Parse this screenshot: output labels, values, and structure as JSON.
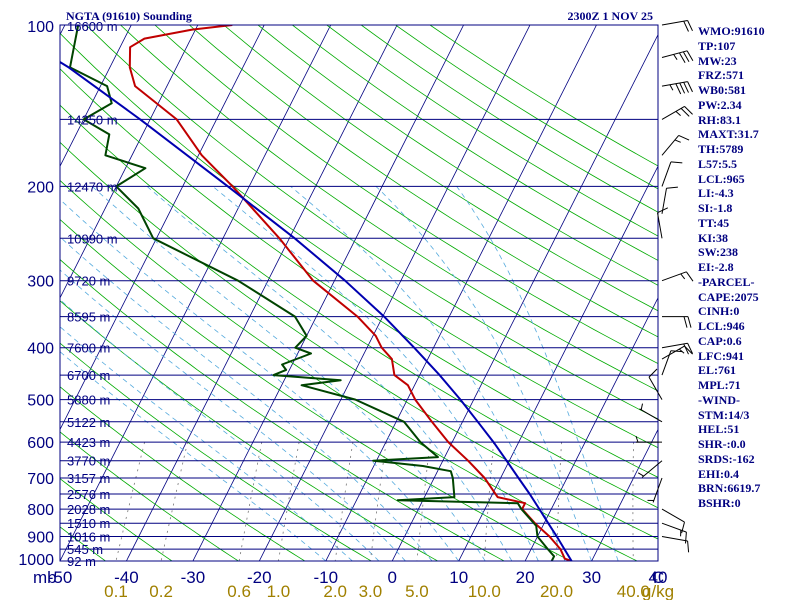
{
  "header": {
    "title": "NGTA (91610) Sounding",
    "datetime": "2300Z  1 NOV 25"
  },
  "colors": {
    "frame": "#000080",
    "temperature": "#c00000",
    "dewpoint": "#004400",
    "parcel": "#0000b0",
    "dry_adiabat": "#00aa00",
    "moist_adiabat": "#55aadd",
    "mixing_ratio": "#777777",
    "isotherm": "#000080",
    "wind": "#000000",
    "mixing_label": "#a08000"
  },
  "chart_data": {
    "type": "line",
    "title": "NGTA (91610) Sounding",
    "diagram": "Skew-T log-P",
    "pressure_unit_label": "mb",
    "mixing_ratio_unit_label": "g/kg",
    "pressure_levels": [
      100,
      200,
      300,
      400,
      500,
      600,
      700,
      800,
      900,
      1000
    ],
    "pressure_labels": [
      "100",
      "200",
      "300",
      "400",
      "500",
      "600",
      "700",
      "800",
      "900",
      "1000"
    ],
    "temp_range": [
      -50,
      40
    ],
    "temperature_ticks": [
      -50,
      -40,
      -30,
      -20,
      -10,
      0,
      10,
      20,
      30,
      40
    ],
    "temperature_tick_labels": [
      "-50",
      "-40",
      "-30",
      "-20",
      "-10",
      "0",
      "10",
      "20",
      "30",
      "40"
    ],
    "temperature_end_label": "C",
    "height_labels": [
      {
        "p": 100,
        "label": "16600 m"
      },
      {
        "p": 150,
        "label": "14250 m"
      },
      {
        "p": 200,
        "label": "12470 m"
      },
      {
        "p": 250,
        "label": "10990 m"
      },
      {
        "p": 300,
        "label": "9720 m"
      },
      {
        "p": 350,
        "label": "8595 m"
      },
      {
        "p": 400,
        "label": "7600 m"
      },
      {
        "p": 450,
        "label": "6700 m"
      },
      {
        "p": 500,
        "label": "5880 m"
      },
      {
        "p": 550,
        "label": "5122 m"
      },
      {
        "p": 600,
        "label": "4423 m"
      },
      {
        "p": 650,
        "label": "3770 m"
      },
      {
        "p": 700,
        "label": "3157 m"
      },
      {
        "p": 750,
        "label": "2576 m"
      },
      {
        "p": 800,
        "label": "2028 m"
      },
      {
        "p": 850,
        "label": "1510 m"
      },
      {
        "p": 900,
        "label": "1016 m"
      },
      {
        "p": 950,
        "label": "545 m"
      },
      {
        "p": 1000,
        "label": "92 m"
      }
    ],
    "mixing_ratio_labels": [
      "0.1",
      "0.2",
      "0.6",
      "1.0",
      "2.0",
      "3.0",
      "5.0",
      "10.0",
      "20.0",
      "40.0"
    ],
    "series": [
      {
        "name": "Temperature",
        "points": [
          {
            "p": 1000,
            "t": 27.0
          },
          {
            "p": 990,
            "t": 25.8
          },
          {
            "p": 950,
            "t": 24.4
          },
          {
            "p": 900,
            "t": 21.8
          },
          {
            "p": 850,
            "t": 18.6
          },
          {
            "p": 800,
            "t": 15.6
          },
          {
            "p": 780,
            "t": 15.6
          },
          {
            "p": 760,
            "t": 11.0
          },
          {
            "p": 700,
            "t": 7.6
          },
          {
            "p": 650,
            "t": 3.8
          },
          {
            "p": 600,
            "t": -0.6
          },
          {
            "p": 550,
            "t": -4.6
          },
          {
            "p": 500,
            "t": -8.8
          },
          {
            "p": 470,
            "t": -11.0
          },
          {
            "p": 450,
            "t": -13.8
          },
          {
            "p": 420,
            "t": -15.4
          },
          {
            "p": 400,
            "t": -17.8
          },
          {
            "p": 380,
            "t": -19.6
          },
          {
            "p": 350,
            "t": -23.8
          },
          {
            "p": 300,
            "t": -33.2
          },
          {
            "p": 250,
            "t": -41.5
          },
          {
            "p": 200,
            "t": -52.5
          },
          {
            "p": 175,
            "t": -59.5
          },
          {
            "p": 150,
            "t": -66.0
          },
          {
            "p": 130,
            "t": -74.8
          },
          {
            "p": 120,
            "t": -77.0
          },
          {
            "p": 110,
            "t": -78.5
          },
          {
            "p": 106,
            "t": -77.0
          },
          {
            "p": 102,
            "t": -70.5
          },
          {
            "p": 100,
            "t": -64.8
          }
        ]
      },
      {
        "name": "Dewpoint",
        "points": [
          {
            "p": 1000,
            "t": 24.0
          },
          {
            "p": 980,
            "t": 24.0
          },
          {
            "p": 950,
            "t": 22.5
          },
          {
            "p": 900,
            "t": 20.0
          },
          {
            "p": 860,
            "t": 19.0
          },
          {
            "p": 800,
            "t": 15.5
          },
          {
            "p": 780,
            "t": 14.5
          },
          {
            "p": 770,
            "t": -3.8
          },
          {
            "p": 760,
            "t": 4.5
          },
          {
            "p": 700,
            "t": 2.8
          },
          {
            "p": 680,
            "t": 2.0
          },
          {
            "p": 665,
            "t": -2.6
          },
          {
            "p": 650,
            "t": -10.5
          },
          {
            "p": 640,
            "t": -1.0
          },
          {
            "p": 600,
            "t": -4.8
          },
          {
            "p": 550,
            "t": -8.8
          },
          {
            "p": 500,
            "t": -17.8
          },
          {
            "p": 470,
            "t": -27.0
          },
          {
            "p": 460,
            "t": -21.5
          },
          {
            "p": 450,
            "t": -32.0
          },
          {
            "p": 440,
            "t": -30.5
          },
          {
            "p": 430,
            "t": -31.5
          },
          {
            "p": 410,
            "t": -28.0
          },
          {
            "p": 400,
            "t": -30.8
          },
          {
            "p": 380,
            "t": -30.0
          },
          {
            "p": 350,
            "t": -33.2
          },
          {
            "p": 300,
            "t": -44.5
          },
          {
            "p": 250,
            "t": -60.5
          },
          {
            "p": 220,
            "t": -65.0
          },
          {
            "p": 200,
            "t": -70.0
          },
          {
            "p": 185,
            "t": -67.0
          },
          {
            "p": 175,
            "t": -74.0
          },
          {
            "p": 160,
            "t": -75.0
          },
          {
            "p": 150,
            "t": -80.0
          },
          {
            "p": 140,
            "t": -77.0
          },
          {
            "p": 130,
            "t": -79.0
          },
          {
            "p": 120,
            "t": -86.0
          },
          {
            "p": 100,
            "t": -88.0
          }
        ]
      },
      {
        "name": "Parcel",
        "points": [
          {
            "p": 1000,
            "t": 27.0
          },
          {
            "p": 950,
            "t": 25.0
          },
          {
            "p": 900,
            "t": 22.9
          },
          {
            "p": 850,
            "t": 20.6
          },
          {
            "p": 800,
            "t": 18.2
          },
          {
            "p": 750,
            "t": 15.6
          },
          {
            "p": 700,
            "t": 12.7
          },
          {
            "p": 650,
            "t": 9.6
          },
          {
            "p": 600,
            "t": 6.2
          },
          {
            "p": 550,
            "t": 2.3
          },
          {
            "p": 500,
            "t": -2.0
          },
          {
            "p": 450,
            "t": -7.0
          },
          {
            "p": 400,
            "t": -12.9
          },
          {
            "p": 350,
            "t": -19.8
          },
          {
            "p": 300,
            "t": -28.4
          },
          {
            "p": 250,
            "t": -39.2
          },
          {
            "p": 200,
            "t": -53.2
          },
          {
            "p": 150,
            "t": -71.5
          },
          {
            "p": 120,
            "t": -86.2
          },
          {
            "p": 115,
            "t": -89.4
          }
        ]
      }
    ],
    "wind": [
      {
        "p": 100,
        "dir": 80,
        "kt": 20
      },
      {
        "p": 115,
        "dir": 75,
        "kt": 35
      },
      {
        "p": 130,
        "dir": 80,
        "kt": 45
      },
      {
        "p": 150,
        "dir": 60,
        "kt": 25
      },
      {
        "p": 175,
        "dir": 40,
        "kt": 15
      },
      {
        "p": 200,
        "dir": 20,
        "kt": 10
      },
      {
        "p": 225,
        "dir": 10,
        "kt": 10
      },
      {
        "p": 250,
        "dir": 350,
        "kt": 10
      },
      {
        "p": 300,
        "dir": 70,
        "kt": 15
      },
      {
        "p": 350,
        "dir": 90,
        "kt": 20
      },
      {
        "p": 400,
        "dir": 80,
        "kt": 20
      },
      {
        "p": 420,
        "dir": 60,
        "kt": 15
      },
      {
        "p": 450,
        "dir": 20,
        "kt": 10
      },
      {
        "p": 500,
        "dir": 330,
        "kt": 10
      },
      {
        "p": 550,
        "dir": 300,
        "kt": 5
      },
      {
        "p": 600,
        "dir": 270,
        "kt": 5
      },
      {
        "p": 650,
        "dir": 230,
        "kt": 5
      },
      {
        "p": 700,
        "dir": 200,
        "kt": 5
      },
      {
        "p": 800,
        "dir": 120,
        "kt": 10
      },
      {
        "p": 850,
        "dir": 110,
        "kt": 15
      },
      {
        "p": 900,
        "dir": 100,
        "kt": 10
      }
    ]
  },
  "indices": [
    "WMO:91610",
    "TP:107",
    "MW:23",
    "FRZ:571",
    "WB0:581",
    "PW:2.34",
    "RH:83.1",
    "MAXT:31.7",
    "TH:5789",
    "L57:5.5",
    "LCL:965",
    "LI:-4.3",
    "SI:-1.8",
    "TT:45",
    "KI:38",
    "SW:238",
    "EI:-2.8",
    "-PARCEL-",
    "CAPE:2075",
    "CINH:0",
    "LCL:946",
    "CAP:0.6",
    "LFC:941",
    "EL:761",
    "MPL:71",
    "-WIND-",
    "STM:14/3",
    "HEL:51",
    "SHR-:0.0",
    "SRDS:-162",
    "EHI:0.4",
    "BRN:6619.7",
    "BSHR:0"
  ]
}
